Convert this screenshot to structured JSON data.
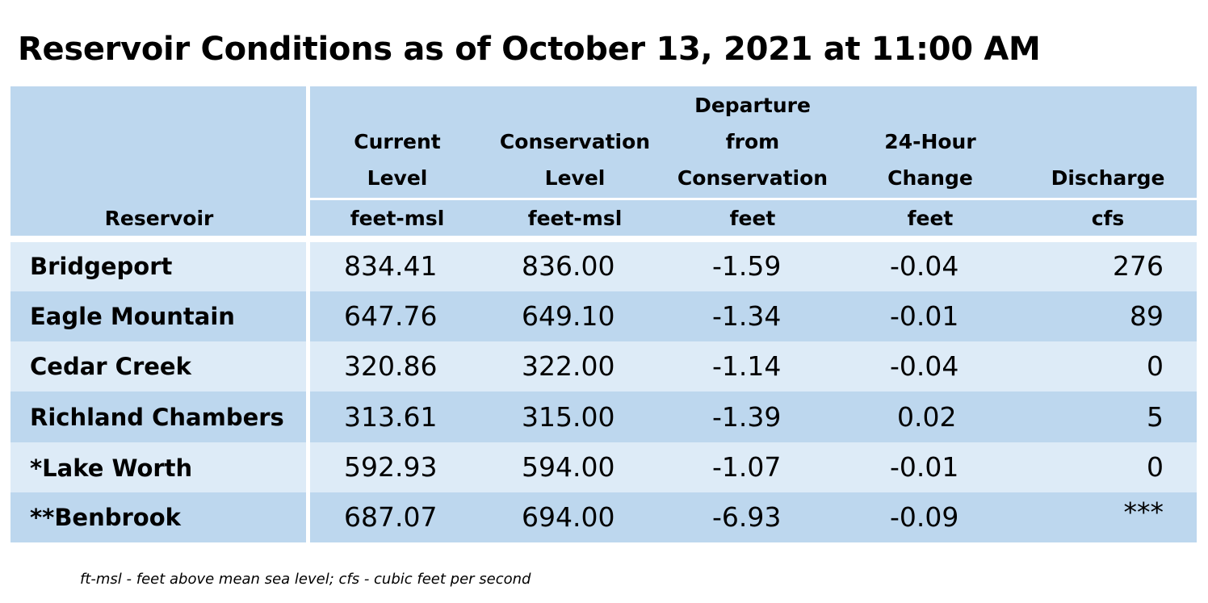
{
  "title": "Reservoir Conditions as of October 13, 2021 at 11:00 AM",
  "header": {
    "reservoir": "Reservoir",
    "current": {
      "l1": "Current",
      "l2": "Level",
      "unit": "feet-msl"
    },
    "conservation": {
      "l1": "Conservation",
      "l2": "Level",
      "unit": "feet-msl"
    },
    "departure": {
      "l1": "Departure",
      "l2": "from",
      "l3": "Conservation",
      "unit": "feet"
    },
    "change": {
      "l1": "24-Hour",
      "l2": "Change",
      "unit": "feet"
    },
    "discharge": {
      "l1": "Discharge",
      "unit": "cfs"
    }
  },
  "rows": [
    {
      "name": "Bridgeport",
      "current": "834.41",
      "conservation": "836.00",
      "departure": "-1.59",
      "change": "-0.04",
      "discharge": "276"
    },
    {
      "name": "Eagle Mountain",
      "current": "647.76",
      "conservation": "649.10",
      "departure": "-1.34",
      "change": "-0.01",
      "discharge": "89"
    },
    {
      "name": "Cedar Creek",
      "current": "320.86",
      "conservation": "322.00",
      "departure": "-1.14",
      "change": "-0.04",
      "discharge": "0"
    },
    {
      "name": "Richland Chambers",
      "current": "313.61",
      "conservation": "315.00",
      "departure": "-1.39",
      "change": "0.02",
      "discharge": "5"
    },
    {
      "name": "*Lake Worth",
      "current": "592.93",
      "conservation": "594.00",
      "departure": "-1.07",
      "change": "-0.01",
      "discharge": "0"
    },
    {
      "name": "**Benbrook",
      "current": "687.07",
      "conservation": "694.00",
      "departure": "-6.93",
      "change": "-0.09",
      "discharge": "***"
    }
  ],
  "footnote": "ft-msl - feet above mean sea level; cfs - cubic feet per second",
  "colors": {
    "header_bg": "#bdd7ee",
    "row_light": "#ddebf7",
    "row_dark": "#bdd7ee"
  }
}
